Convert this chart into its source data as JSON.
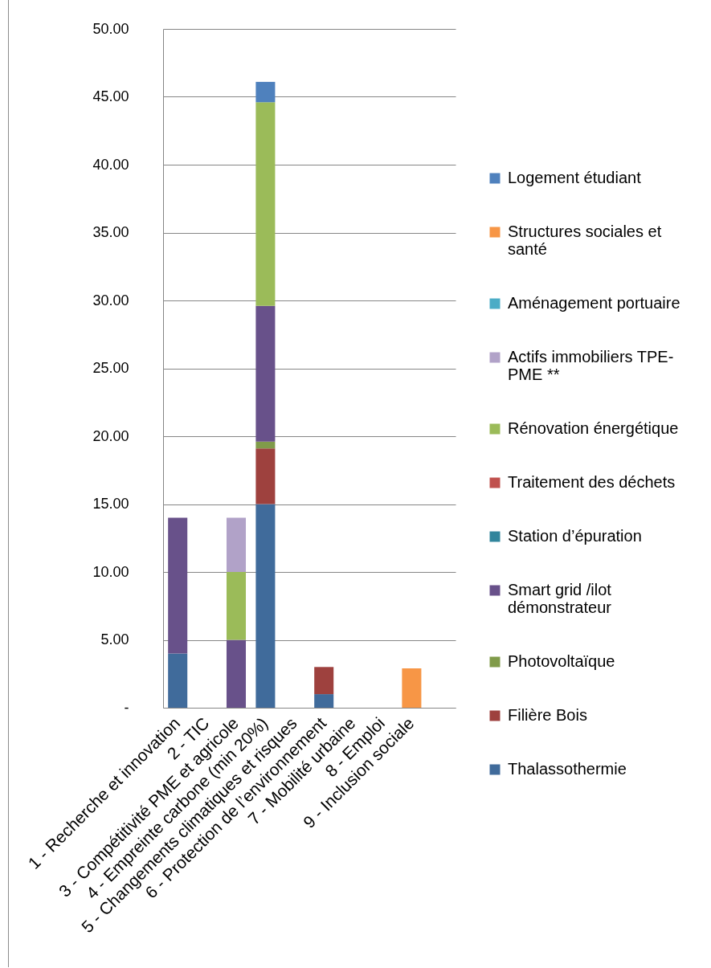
{
  "chart_data": {
    "type": "bar",
    "stacked": true,
    "categories": [
      "1 - Recherche et innovation",
      "2 - TIC",
      "3 - Compétitivité PME et agricole",
      "4 - Empreinte carbone (min 20%)",
      "5 - Changements climatiques et risques",
      "6 - Protection de l’environnement",
      "7 - Mobilité urbaine",
      "8 - Emploi",
      "9 - Inclusion sociale",
      null
    ],
    "ylim": [
      0,
      50
    ],
    "yticks": [
      {
        "value": 0,
        "label": "-"
      },
      {
        "value": 5,
        "label": "5.00"
      },
      {
        "value": 10,
        "label": "10.00"
      },
      {
        "value": 15,
        "label": "15.00"
      },
      {
        "value": 20,
        "label": "20.00"
      },
      {
        "value": 25,
        "label": "25.00"
      },
      {
        "value": 30,
        "label": "30.00"
      },
      {
        "value": 35,
        "label": "35.00"
      },
      {
        "value": 40,
        "label": "40.00"
      },
      {
        "value": 45,
        "label": "45.00"
      },
      {
        "value": 50,
        "label": "50.00"
      }
    ],
    "grid": "y",
    "legend": "right",
    "series": [
      {
        "name": "Thalassothermie",
        "color": "#406b9b",
        "values": [
          4,
          null,
          null,
          15,
          null,
          1,
          null,
          null,
          null,
          null
        ]
      },
      {
        "name": "Filière Bois",
        "color": "#9e413e",
        "values": [
          null,
          null,
          null,
          4.1,
          null,
          2,
          null,
          null,
          null,
          null
        ]
      },
      {
        "name": "Photovoltaïque",
        "color": "#809b4a",
        "values": [
          null,
          null,
          null,
          0.5,
          null,
          null,
          null,
          null,
          null,
          null
        ]
      },
      {
        "name": "Smart grid /ilot démonstrateur",
        "color": "#68518a",
        "values": [
          10,
          null,
          5,
          10,
          null,
          null,
          null,
          null,
          null,
          null
        ]
      },
      {
        "name": "Station d’épuration",
        "color": "#31859c",
        "values": [
          null,
          null,
          null,
          null,
          null,
          null,
          null,
          null,
          null,
          null
        ]
      },
      {
        "name": "Traitement des déchets",
        "color": "#c0504d",
        "values": [
          null,
          null,
          null,
          null,
          null,
          null,
          null,
          null,
          null,
          null
        ]
      },
      {
        "name": "Rénovation énergétique",
        "color": "#9bbb59",
        "values": [
          null,
          null,
          5,
          15,
          null,
          null,
          null,
          null,
          null,
          null
        ]
      },
      {
        "name": "Actifs immobiliers TPE-PME **",
        "color": "#b1a2c8",
        "values": [
          null,
          null,
          4,
          null,
          null,
          null,
          null,
          null,
          null,
          null
        ]
      },
      {
        "name": "Aménagement portuaire",
        "color": "#4bacc6",
        "values": [
          null,
          null,
          null,
          null,
          null,
          null,
          null,
          null,
          null,
          null
        ]
      },
      {
        "name": "Structures sociales et santé",
        "color": "#f79646",
        "values": [
          null,
          null,
          null,
          null,
          null,
          null,
          null,
          null,
          2.9,
          null
        ]
      },
      {
        "name": "Logement étudiant",
        "color": "#4f81bd",
        "values": [
          null,
          null,
          null,
          1.5,
          null,
          null,
          null,
          null,
          null,
          null
        ]
      }
    ]
  }
}
